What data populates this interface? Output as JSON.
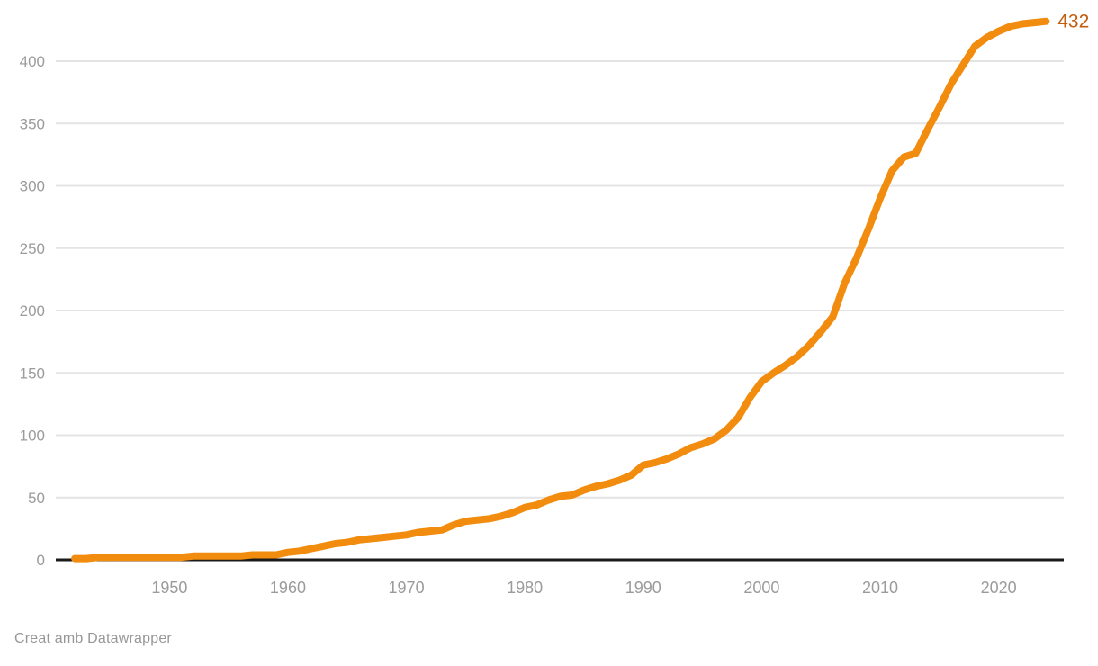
{
  "footer": {
    "attribution": "Creat amb Datawrapper"
  },
  "chart_data": {
    "type": "line",
    "title": "",
    "xlabel": "",
    "ylabel": "",
    "x_axis_range": [
      1940.4,
      2025.5
    ],
    "ylim": [
      0,
      432
    ],
    "y_ticks": [
      0,
      50,
      100,
      150,
      200,
      250,
      300,
      350,
      400
    ],
    "x_ticks": [
      1950,
      1960,
      1970,
      1980,
      1990,
      2000,
      2010,
      2020
    ],
    "grid": "horizontal",
    "legend": "none",
    "end_label": "432",
    "colors": {
      "line": "#F28C0E",
      "end_label": "#C25E0C",
      "grid": "#E4E4E4",
      "zero_axis": "#1A1A1A",
      "tick_label": "#9B9B9B"
    },
    "x": [
      1942,
      1943,
      1944,
      1945,
      1946,
      1947,
      1948,
      1949,
      1950,
      1951,
      1952,
      1953,
      1954,
      1955,
      1956,
      1957,
      1958,
      1959,
      1960,
      1961,
      1962,
      1963,
      1964,
      1965,
      1966,
      1967,
      1968,
      1969,
      1970,
      1971,
      1972,
      1973,
      1974,
      1975,
      1976,
      1977,
      1978,
      1979,
      1980,
      1981,
      1982,
      1983,
      1984,
      1985,
      1986,
      1987,
      1988,
      1989,
      1990,
      1991,
      1992,
      1993,
      1994,
      1995,
      1996,
      1997,
      1998,
      1999,
      2000,
      2001,
      2002,
      2003,
      2004,
      2005,
      2006,
      2007,
      2008,
      2009,
      2010,
      2011,
      2012,
      2013,
      2014,
      2015,
      2016,
      2017,
      2018,
      2019,
      2020,
      2021,
      2022,
      2023,
      2024
    ],
    "values": [
      1,
      1,
      2,
      2,
      2,
      2,
      2,
      2,
      2,
      2,
      3,
      3,
      3,
      3,
      3,
      4,
      4,
      4,
      6,
      7,
      9,
      11,
      13,
      14,
      16,
      17,
      18,
      19,
      20,
      22,
      23,
      24,
      28,
      31,
      32,
      33,
      35,
      38,
      42,
      44,
      48,
      51,
      52,
      56,
      59,
      61,
      64,
      68,
      76,
      78,
      81,
      85,
      90,
      93,
      97,
      104,
      114,
      130,
      143,
      150,
      156,
      163,
      172,
      183,
      195,
      222,
      242,
      265,
      290,
      312,
      323,
      326,
      345,
      363,
      382,
      397,
      412,
      419,
      424,
      428,
      430,
      431,
      432
    ]
  }
}
